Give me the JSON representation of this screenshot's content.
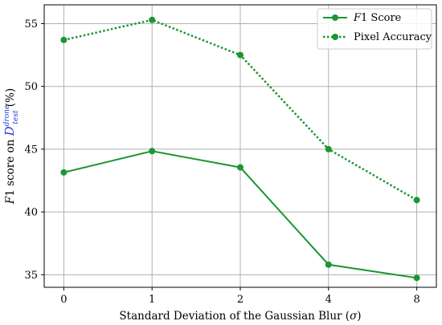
{
  "chart_data": {
    "type": "line",
    "x_tick_labels": [
      "0",
      "1",
      "2",
      "4",
      "8"
    ],
    "xlabel": {
      "text": "Standard Deviation of the Gaussian Blur (",
      "symbol": "σ",
      "suffix": ")"
    },
    "ylabel": {
      "prefix": "F",
      "middle": "1 score on ",
      "math": "D",
      "superscript": "drone",
      "subscript": "test",
      "suffix": " (%)",
      "math_color": "#1f3fd6"
    },
    "ylim": [
      34.0,
      56.5
    ],
    "y_ticks": [
      35,
      40,
      45,
      50,
      55
    ],
    "grid": true,
    "legend_position": "top-right",
    "series": [
      {
        "name_prefix": "F",
        "name": "1 Score",
        "style": "solid",
        "color": "#1a9632",
        "values": [
          43.15,
          44.85,
          43.55,
          35.8,
          34.75
        ]
      },
      {
        "name_prefix": "",
        "name": "Pixel Accuracy",
        "style": "dotted",
        "color": "#1a9632",
        "values": [
          53.7,
          55.3,
          52.5,
          45.0,
          40.95
        ]
      }
    ]
  }
}
